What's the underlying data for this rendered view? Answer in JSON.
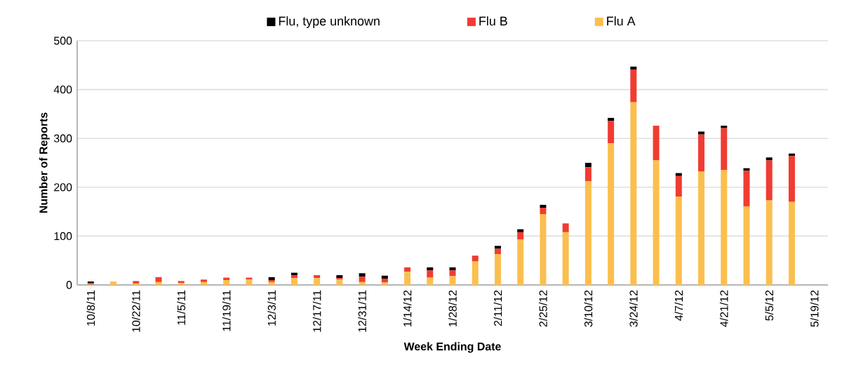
{
  "chart_data": {
    "type": "bar",
    "stacked": true,
    "xlabel": "Week Ending Date",
    "ylabel": "Number of Reports",
    "categories": [
      "10/8/11",
      null,
      "10/22/11",
      null,
      "11/5/11",
      null,
      "11/19/11",
      null,
      "12/3/11",
      null,
      "12/17/11",
      null,
      "12/31/11",
      null,
      "1/14/12",
      null,
      "1/28/12",
      null,
      "2/11/12",
      null,
      "2/25/12",
      null,
      "3/10/12",
      null,
      "3/24/12",
      null,
      "4/7/12",
      null,
      "4/21/12",
      null,
      "5/5/12",
      null,
      "5/19/12"
    ],
    "series": [
      {
        "name": "Flu A",
        "color": "#fbbf4f",
        "values": [
          1,
          7,
          3,
          6,
          4,
          6,
          10,
          11,
          6,
          14,
          14,
          11,
          6,
          5,
          27,
          15,
          18,
          48,
          63,
          93,
          145,
          108,
          212,
          290,
          374,
          255,
          181,
          232,
          235,
          161,
          173,
          170,
          null
        ]
      },
      {
        "name": "Flu B",
        "color": "#f03c33",
        "values": [
          3,
          0,
          5,
          10,
          4,
          5,
          5,
          4,
          4,
          6,
          6,
          3,
          11,
          8,
          9,
          15,
          12,
          12,
          11,
          15,
          13,
          18,
          29,
          46,
          67,
          71,
          42,
          76,
          86,
          73,
          82,
          94,
          null
        ]
      },
      {
        "name": "Flu, type unknown",
        "color": "#000000",
        "values": [
          3,
          0,
          0,
          0,
          0,
          0,
          0,
          0,
          6,
          5,
          0,
          6,
          7,
          6,
          0,
          6,
          6,
          0,
          6,
          6,
          6,
          0,
          9,
          6,
          6,
          0,
          6,
          6,
          5,
          5,
          6,
          5,
          null
        ]
      }
    ],
    "ylim": [
      0,
      500
    ],
    "yticks": [
      0,
      100,
      200,
      300,
      400,
      500
    ],
    "grid": "y",
    "legend": "top"
  }
}
